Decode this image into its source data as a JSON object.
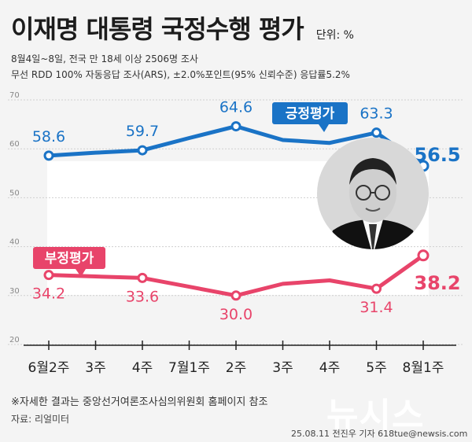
{
  "header": {
    "title": "이재명 대통령 국정수행 평가",
    "unit": "단위: %",
    "subtitle1": "8월4일~8일, 전국 만 18세 이상 2506명 조사",
    "subtitle2": "무선 RDD 100% 자동응답 조사(ARS), ±2.0%포인트(95% 신뢰수준) 응답률5.2%"
  },
  "chart_data": {
    "type": "line",
    "categories": [
      "6월2주",
      "3주",
      "4주",
      "7월1주",
      "2주",
      "3주",
      "4주",
      "5주",
      "8월1주"
    ],
    "series": [
      {
        "name": "긍정평가",
        "color": "#1a73c6",
        "values": [
          58.6,
          59.2,
          59.7,
          62.2,
          64.6,
          61.8,
          61.2,
          63.3,
          56.5
        ],
        "labels": [
          "58.6",
          null,
          "59.7",
          null,
          "64.6",
          null,
          null,
          "63.3",
          "56.5"
        ]
      },
      {
        "name": "부정평가",
        "color": "#e8446a",
        "values": [
          34.2,
          33.9,
          33.6,
          31.8,
          30.0,
          32.4,
          33.1,
          31.4,
          38.2
        ],
        "labels": [
          "34.2",
          null,
          "33.6",
          null,
          "30.0",
          null,
          null,
          "31.4",
          "38.2"
        ]
      }
    ],
    "ylim": [
      20,
      70
    ],
    "yticks": [
      "20",
      "30",
      "40",
      "50",
      "60",
      "70"
    ],
    "grid": true
  },
  "footnote": "※자세한 결과는 중앙선거여론조사심의위원회 홈페이지 참조",
  "source": "자료: 리얼미터",
  "credit": "25.08.11 전진우 기자 618tue@newsis.com",
  "brand": "뉴시스"
}
